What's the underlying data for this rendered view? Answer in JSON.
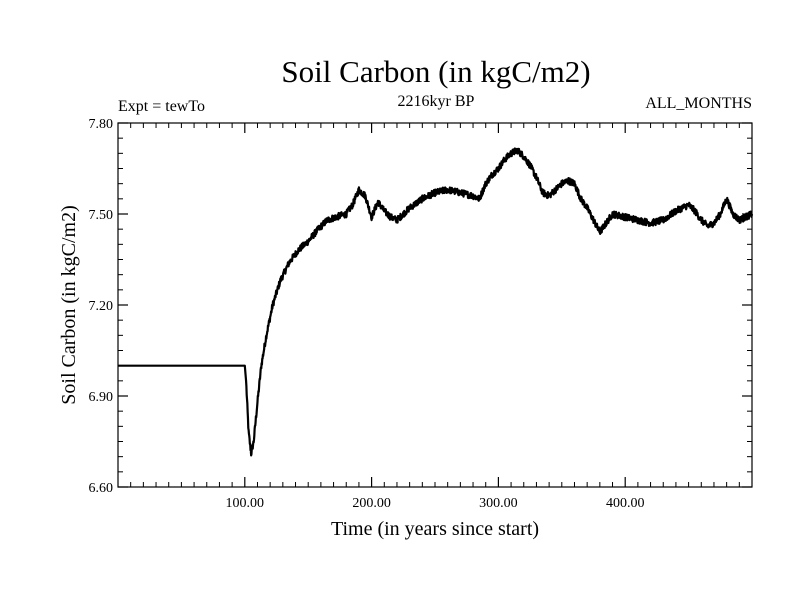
{
  "chart_data": {
    "type": "line",
    "title": "Soil Carbon (in kgC/m2)",
    "subtitle_left": "Expt = tewTo",
    "subtitle_center": "2216kyr BP",
    "subtitle_right": "ALL_MONTHS",
    "xlabel": "Time (in years since start)",
    "ylabel": "Soil Carbon (in kgC/m2)",
    "xlim": [
      0,
      500
    ],
    "ylim": [
      6.6,
      7.8
    ],
    "xticks": [
      100,
      200,
      300,
      400
    ],
    "xtick_labels": [
      "100.00",
      "200.00",
      "300.00",
      "400.00"
    ],
    "yticks": [
      6.6,
      6.9,
      7.2,
      7.5,
      7.8
    ],
    "ytick_labels": [
      "6.60",
      "6.90",
      "7.20",
      "7.50",
      "7.80"
    ],
    "series": [
      {
        "name": "Soil Carbon",
        "color": "#000000",
        "x": [
          0,
          100,
          101,
          103,
          105,
          107,
          110,
          113,
          117,
          122,
          128,
          135,
          142,
          150,
          158,
          165,
          172,
          180,
          185,
          190,
          195,
          200,
          205,
          210,
          215,
          220,
          230,
          240,
          250,
          260,
          270,
          280,
          285,
          290,
          295,
          300,
          305,
          310,
          315,
          320,
          325,
          330,
          335,
          340,
          345,
          350,
          355,
          360,
          365,
          370,
          375,
          380,
          385,
          390,
          400,
          410,
          420,
          430,
          440,
          445,
          450,
          455,
          460,
          465,
          470,
          475,
          480,
          485,
          490,
          495,
          500
        ],
        "y": [
          7.0,
          7.0,
          6.95,
          6.78,
          6.71,
          6.75,
          6.88,
          7.0,
          7.1,
          7.2,
          7.28,
          7.34,
          7.38,
          7.41,
          7.45,
          7.48,
          7.49,
          7.5,
          7.53,
          7.58,
          7.56,
          7.49,
          7.54,
          7.51,
          7.49,
          7.48,
          7.52,
          7.55,
          7.57,
          7.58,
          7.57,
          7.56,
          7.55,
          7.6,
          7.63,
          7.65,
          7.68,
          7.7,
          7.71,
          7.69,
          7.66,
          7.62,
          7.57,
          7.56,
          7.58,
          7.6,
          7.61,
          7.6,
          7.55,
          7.52,
          7.48,
          7.44,
          7.47,
          7.5,
          7.49,
          7.48,
          7.47,
          7.48,
          7.51,
          7.52,
          7.53,
          7.51,
          7.48,
          7.46,
          7.47,
          7.5,
          7.55,
          7.5,
          7.48,
          7.49,
          7.5
        ]
      }
    ]
  }
}
